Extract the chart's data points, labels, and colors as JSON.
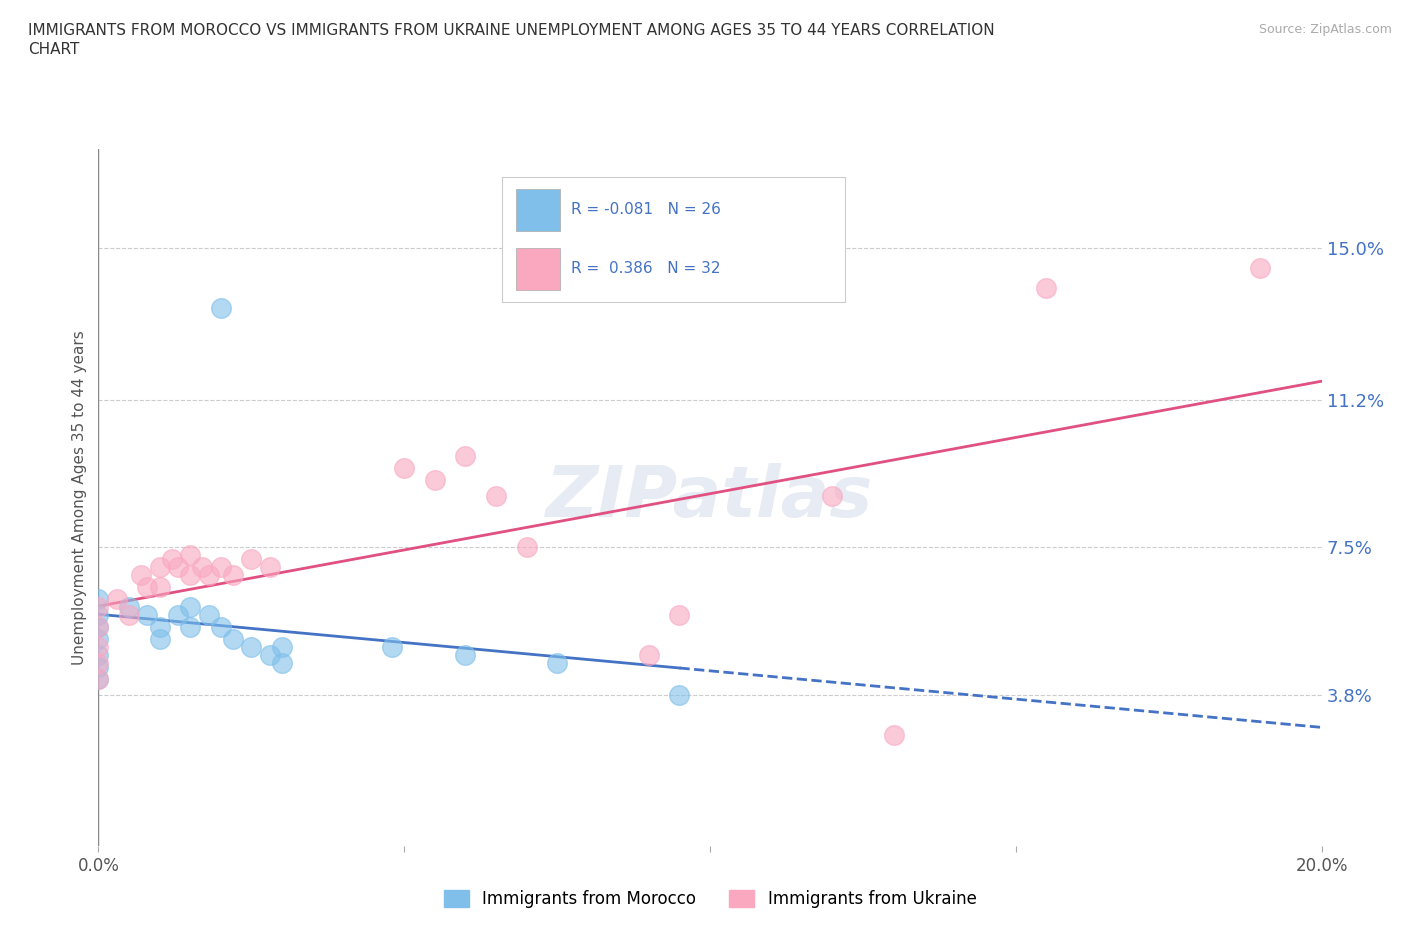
{
  "title_line1": "IMMIGRANTS FROM MOROCCO VS IMMIGRANTS FROM UKRAINE UNEMPLOYMENT AMONG AGES 35 TO 44 YEARS CORRELATION",
  "title_line2": "CHART",
  "source": "Source: ZipAtlas.com",
  "ylabel": "Unemployment Among Ages 35 to 44 years",
  "xlim": [
    0.0,
    0.2
  ],
  "ylim": [
    0.0,
    0.175
  ],
  "xticks": [
    0.0,
    0.05,
    0.1,
    0.15,
    0.2
  ],
  "xticklabels": [
    "0.0%",
    "",
    "",
    "",
    "20.0%"
  ],
  "ytick_positions": [
    0.038,
    0.075,
    0.112,
    0.15
  ],
  "ytick_labels": [
    "3.8%",
    "7.5%",
    "11.2%",
    "15.0%"
  ],
  "morocco_color": "#7fbfea",
  "ukraine_color": "#f9a8c0",
  "morocco_line_color": "#4472c4",
  "ukraine_line_color": "#e05080",
  "legend_text_color": "#4472c4",
  "tick_label_color": "#4472c4",
  "R_morocco": -0.081,
  "N_morocco": 26,
  "R_ukraine": 0.386,
  "N_ukraine": 32,
  "watermark": "ZIPatlas",
  "morocco_scatter": [
    [
      0.0,
      0.062
    ],
    [
      0.0,
      0.058
    ],
    [
      0.0,
      0.055
    ],
    [
      0.0,
      0.052
    ],
    [
      0.0,
      0.048
    ],
    [
      0.0,
      0.045
    ],
    [
      0.0,
      0.042
    ],
    [
      0.005,
      0.06
    ],
    [
      0.008,
      0.058
    ],
    [
      0.01,
      0.055
    ],
    [
      0.01,
      0.052
    ],
    [
      0.013,
      0.058
    ],
    [
      0.015,
      0.06
    ],
    [
      0.015,
      0.055
    ],
    [
      0.018,
      0.058
    ],
    [
      0.02,
      0.055
    ],
    [
      0.022,
      0.052
    ],
    [
      0.025,
      0.05
    ],
    [
      0.028,
      0.048
    ],
    [
      0.03,
      0.05
    ],
    [
      0.03,
      0.046
    ],
    [
      0.048,
      0.05
    ],
    [
      0.06,
      0.048
    ],
    [
      0.075,
      0.046
    ],
    [
      0.095,
      0.038
    ],
    [
      0.02,
      0.135
    ]
  ],
  "ukraine_scatter": [
    [
      0.0,
      0.06
    ],
    [
      0.0,
      0.055
    ],
    [
      0.0,
      0.05
    ],
    [
      0.0,
      0.046
    ],
    [
      0.0,
      0.042
    ],
    [
      0.003,
      0.062
    ],
    [
      0.005,
      0.058
    ],
    [
      0.007,
      0.068
    ],
    [
      0.008,
      0.065
    ],
    [
      0.01,
      0.07
    ],
    [
      0.01,
      0.065
    ],
    [
      0.012,
      0.072
    ],
    [
      0.013,
      0.07
    ],
    [
      0.015,
      0.073
    ],
    [
      0.015,
      0.068
    ],
    [
      0.017,
      0.07
    ],
    [
      0.018,
      0.068
    ],
    [
      0.02,
      0.07
    ],
    [
      0.022,
      0.068
    ],
    [
      0.025,
      0.072
    ],
    [
      0.028,
      0.07
    ],
    [
      0.05,
      0.095
    ],
    [
      0.055,
      0.092
    ],
    [
      0.06,
      0.098
    ],
    [
      0.065,
      0.088
    ],
    [
      0.07,
      0.075
    ],
    [
      0.09,
      0.048
    ],
    [
      0.095,
      0.058
    ],
    [
      0.12,
      0.088
    ],
    [
      0.13,
      0.028
    ],
    [
      0.155,
      0.14
    ],
    [
      0.19,
      0.145
    ]
  ],
  "background_color": "#ffffff",
  "grid_color": "#cccccc"
}
